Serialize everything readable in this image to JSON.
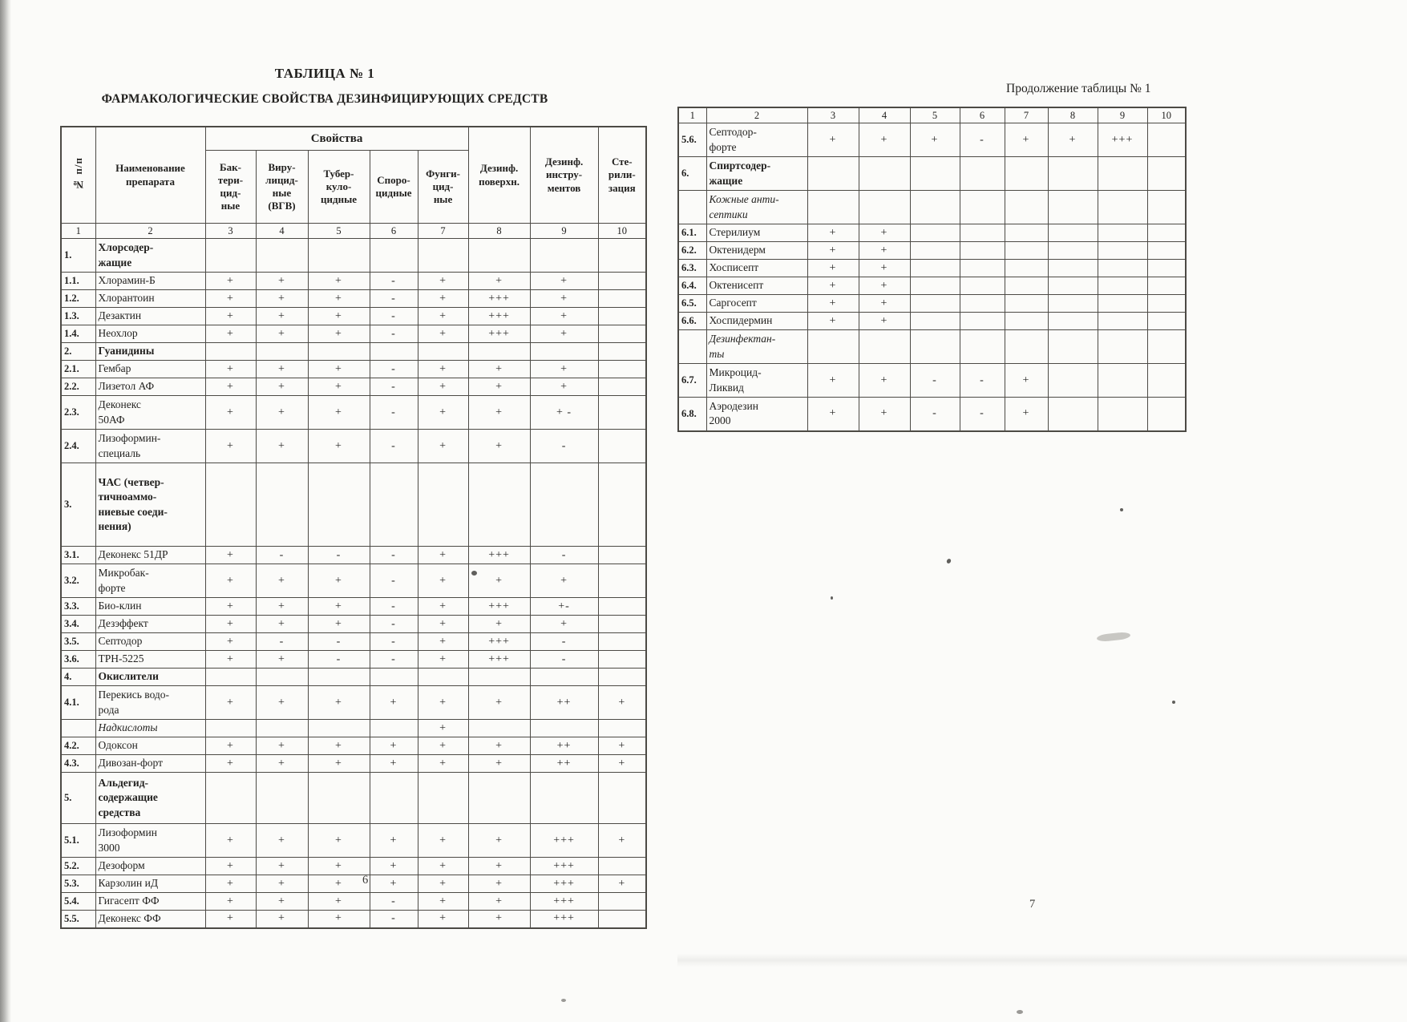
{
  "page": {
    "left_page_number": "6",
    "right_page_number": "7"
  },
  "left_table": {
    "title": "ТАБЛИЦА № 1",
    "subtitle": "ФАРМАКОЛОГИЧЕСКИЕ СВОЙСТВА ДЕЗИНФИЦИРУЮЩИХ СРЕДСТВ",
    "header": {
      "num": "№ п/п",
      "name": "Наименование\nпрепарата",
      "group": "Свойства",
      "properties": [
        "Бак-\nтери-\nцид-\nные",
        "Виру-\nлицид-\nные\n(ВГВ)",
        "Тубер-\nкуло-\nцидные",
        "Споро-\nцидные",
        "Фунги-\nцид-\nные"
      ],
      "col8": "Дезинф.\nповерхн.",
      "col9": "Дезинф.\nинстру-\nментов",
      "col10": "Сте-\nрили-\nзация",
      "col_numbers": [
        "1",
        "2",
        "3",
        "4",
        "5",
        "6",
        "7",
        "8",
        "9",
        "10"
      ]
    },
    "rows": [
      {
        "num": "1.",
        "name": "Хлорсодер-\nжащие",
        "style": "section",
        "h": "double",
        "cells": [
          "",
          "",
          "",
          "",
          "",
          "",
          "",
          ""
        ]
      },
      {
        "num": "1.1.",
        "name": "Хлорамин-Б",
        "style": "normal",
        "h": "single",
        "cells": [
          "+",
          "+",
          "+",
          "-",
          "+",
          "+",
          "+",
          ""
        ]
      },
      {
        "num": "1.2.",
        "name": "Хлорантоин",
        "style": "normal",
        "h": "single",
        "cells": [
          "+",
          "+",
          "+",
          "-",
          "+",
          "+++",
          "+",
          ""
        ]
      },
      {
        "num": "1.3.",
        "name": "Дезактин",
        "style": "normal",
        "h": "single",
        "cells": [
          "+",
          "+",
          "+",
          "-",
          "+",
          "+++",
          "+",
          ""
        ]
      },
      {
        "num": "1.4.",
        "name": "Неохлор",
        "style": "normal",
        "h": "single",
        "cells": [
          "+",
          "+",
          "+",
          "-",
          "+",
          "+++",
          "+",
          ""
        ]
      },
      {
        "num": "2.",
        "name": "Гуанидины",
        "style": "section",
        "h": "single",
        "cells": [
          "",
          "",
          "",
          "",
          "",
          "",
          "",
          ""
        ]
      },
      {
        "num": "2.1.",
        "name": "Гембар",
        "style": "normal",
        "h": "single",
        "cells": [
          "+",
          "+",
          "+",
          "-",
          "+",
          "+",
          "+",
          ""
        ]
      },
      {
        "num": "2.2.",
        "name": "Лизетол АФ",
        "style": "normal",
        "h": "single",
        "cells": [
          "+",
          "+",
          "+",
          "-",
          "+",
          "+",
          "+",
          ""
        ]
      },
      {
        "num": "2.3.",
        "name": "Деконекс\n50АФ",
        "style": "normal",
        "h": "double",
        "cells": [
          "+",
          "+",
          "+",
          "-",
          "+",
          "+",
          "+ -",
          ""
        ]
      },
      {
        "num": "2.4.",
        "name": "Лизоформин-\nспециаль",
        "style": "normal",
        "h": "double",
        "cells": [
          "+",
          "+",
          "+",
          "-",
          "+",
          "+",
          "-",
          ""
        ]
      },
      {
        "num": "3.",
        "name": "ЧАС  (четвер-\nтичноаммо-\nниевые  соеди-\nнения)",
        "style": "section",
        "h": "quad",
        "cells": [
          "",
          "",
          "",
          "",
          "",
          "",
          "",
          ""
        ]
      },
      {
        "num": "3.1.",
        "name": "Деконекс 51ДР",
        "style": "normal",
        "h": "single",
        "cells": [
          "+",
          "-",
          "-",
          "-",
          "+",
          "+++",
          "-",
          ""
        ]
      },
      {
        "num": "3.2.",
        "name": "Микробак-\nфорте",
        "style": "normal",
        "h": "double",
        "cells": [
          "+",
          "+",
          "+",
          "-",
          "+",
          "+",
          "+",
          ""
        ]
      },
      {
        "num": "3.3.",
        "name": "Био-клин",
        "style": "normal",
        "h": "single",
        "cells": [
          "+",
          "+",
          "+",
          "-",
          "+",
          "+++",
          "+-",
          ""
        ]
      },
      {
        "num": "3.4.",
        "name": "Дезэффект",
        "style": "normal",
        "h": "single",
        "cells": [
          "+",
          "+",
          "+",
          "-",
          "+",
          "+",
          "+",
          ""
        ]
      },
      {
        "num": "3.5.",
        "name": "Септодор",
        "style": "normal",
        "h": "single",
        "cells": [
          "+",
          "-",
          "-",
          "-",
          "+",
          "+++",
          "-",
          ""
        ]
      },
      {
        "num": "3.6.",
        "name": "ТРН-5225",
        "style": "normal",
        "h": "single",
        "cells": [
          "+",
          "+",
          "-",
          "-",
          "+",
          "+++",
          "-",
          ""
        ]
      },
      {
        "num": "4.",
        "name": "Окислители",
        "style": "section",
        "h": "single",
        "cells": [
          "",
          "",
          "",
          "",
          "",
          "",
          "",
          ""
        ]
      },
      {
        "num": "4.1.",
        "name": "Перекись водо-\nрода",
        "style": "normal",
        "h": "double",
        "cells": [
          "+",
          "+",
          "+",
          "+",
          "+",
          "+",
          "++",
          "+"
        ]
      },
      {
        "num": "",
        "name": "Надкислоты",
        "style": "italic",
        "h": "single",
        "cells": [
          "",
          "",
          "",
          "",
          "+",
          "",
          "",
          ""
        ]
      },
      {
        "num": "4.2.",
        "name": "Одоксон",
        "style": "normal",
        "h": "single",
        "cells": [
          "+",
          "+",
          "+",
          "+",
          "+",
          "+",
          "++",
          "+"
        ]
      },
      {
        "num": "4.3.",
        "name": "Дивозан-форт",
        "style": "normal",
        "h": "single",
        "cells": [
          "+",
          "+",
          "+",
          "+",
          "+",
          "+",
          "++",
          "+"
        ]
      },
      {
        "num": "5.",
        "name": "Альдегид-\nсодержащие\nсредства",
        "style": "section",
        "h": "triple",
        "cells": [
          "",
          "",
          "",
          "",
          "",
          "",
          "",
          ""
        ]
      },
      {
        "num": "5.1.",
        "name": "Лизоформин\n3000",
        "style": "normal",
        "h": "double",
        "cells": [
          "+",
          "+",
          "+",
          "+",
          "+",
          "+",
          "+++",
          "+"
        ]
      },
      {
        "num": "5.2.",
        "name": "Дезоформ",
        "style": "normal",
        "h": "single",
        "cells": [
          "+",
          "+",
          "+",
          "+",
          "+",
          "+",
          "+++",
          ""
        ]
      },
      {
        "num": "5.3.",
        "name": "Карзолин иД",
        "style": "normal",
        "h": "single",
        "cells": [
          "+",
          "+",
          "+",
          "+",
          "+",
          "+",
          "+++",
          "+"
        ]
      },
      {
        "num": "5.4.",
        "name": "Гигасепт ФФ",
        "style": "normal",
        "h": "single",
        "cells": [
          "+",
          "+",
          "+",
          "-",
          "+",
          "+",
          "+++",
          ""
        ]
      },
      {
        "num": "5.5.",
        "name": "Деконекс ФФ",
        "style": "normal",
        "h": "single",
        "cells": [
          "+",
          "+",
          "+",
          "-",
          "+",
          "+",
          "+++",
          ""
        ]
      }
    ]
  },
  "right_table": {
    "title": "Продолжение таблицы № 1",
    "col_numbers": [
      "1",
      "2",
      "3",
      "4",
      "5",
      "6",
      "7",
      "8",
      "9",
      "10"
    ],
    "rows": [
      {
        "num": "5.6.",
        "name": "Септодор-\nфорте",
        "style": "normal",
        "h": "double",
        "cells": [
          "+",
          "+",
          "+",
          "-",
          "+",
          "+",
          "+++",
          ""
        ]
      },
      {
        "num": "6.",
        "name": "Спиртсодер-\nжащие",
        "style": "section",
        "h": "double",
        "cells": [
          "",
          "",
          "",
          "",
          "",
          "",
          "",
          ""
        ]
      },
      {
        "num": "",
        "name": "Кожные  анти-\nсептики",
        "style": "italic",
        "h": "double",
        "cells": [
          "",
          "",
          "",
          "",
          "",
          "",
          "",
          ""
        ]
      },
      {
        "num": "6.1.",
        "name": "Стерилиум",
        "style": "normal",
        "h": "single",
        "cells": [
          "+",
          "+",
          "",
          "",
          "",
          "",
          "",
          ""
        ]
      },
      {
        "num": "6.2.",
        "name": "Октенидерм",
        "style": "normal",
        "h": "single",
        "cells": [
          "+",
          "+",
          "",
          "",
          "",
          "",
          "",
          ""
        ]
      },
      {
        "num": "6.3.",
        "name": "Хосписепт",
        "style": "normal",
        "h": "single",
        "cells": [
          "+",
          "+",
          "",
          "",
          "",
          "",
          "",
          ""
        ]
      },
      {
        "num": "6.4.",
        "name": "Октенисепт",
        "style": "normal",
        "h": "single",
        "cells": [
          "+",
          "+",
          "",
          "",
          "",
          "",
          "",
          ""
        ]
      },
      {
        "num": "6.5.",
        "name": "Саргосепт",
        "style": "normal",
        "h": "single",
        "cells": [
          "+",
          "+",
          "",
          "",
          "",
          "",
          "",
          ""
        ]
      },
      {
        "num": "6.6.",
        "name": "Хоспидермин",
        "style": "normal",
        "h": "single",
        "cells": [
          "+",
          "+",
          "",
          "",
          "",
          "",
          "",
          ""
        ]
      },
      {
        "num": "",
        "name": "Дезинфектан-\nты",
        "style": "italic",
        "h": "double",
        "cells": [
          "",
          "",
          "",
          "",
          "",
          "",
          "",
          ""
        ]
      },
      {
        "num": "6.7.",
        "name": "Микроцид-\nЛиквид",
        "style": "normal",
        "h": "double",
        "cells": [
          "+",
          "+",
          "-",
          "-",
          "+",
          "",
          "",
          ""
        ]
      },
      {
        "num": "6.8.",
        "name": "Аэродезин\n2000",
        "style": "normal",
        "h": "double",
        "cells": [
          "+",
          "+",
          "-",
          "-",
          "+",
          "",
          "",
          ""
        ]
      }
    ]
  }
}
